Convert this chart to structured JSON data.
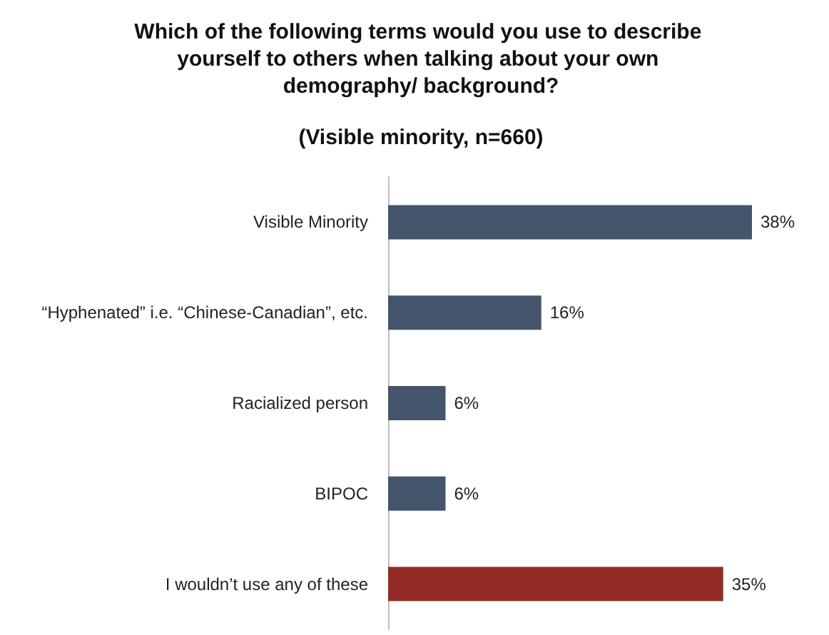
{
  "chart_data": {
    "type": "bar",
    "orientation": "horizontal",
    "title": "Which of the following terms would you use to describe yourself to others when talking about your own demography/ background?",
    "subtitle": "(Visible minority, n=660)",
    "categories": [
      "Visible Minority",
      "“Hyphenated” i.e. “Chinese-Canadian”, etc.",
      "Racialized person",
      "BIPOC",
      "I wouldn’t use any of these"
    ],
    "values": [
      38,
      16,
      6,
      6,
      35
    ],
    "colors": [
      "#44546a",
      "#44546a",
      "#44546a",
      "#44546a",
      "#922b26"
    ],
    "value_labels": [
      "38%",
      "16%",
      "6%",
      "6%",
      "35%"
    ]
  }
}
